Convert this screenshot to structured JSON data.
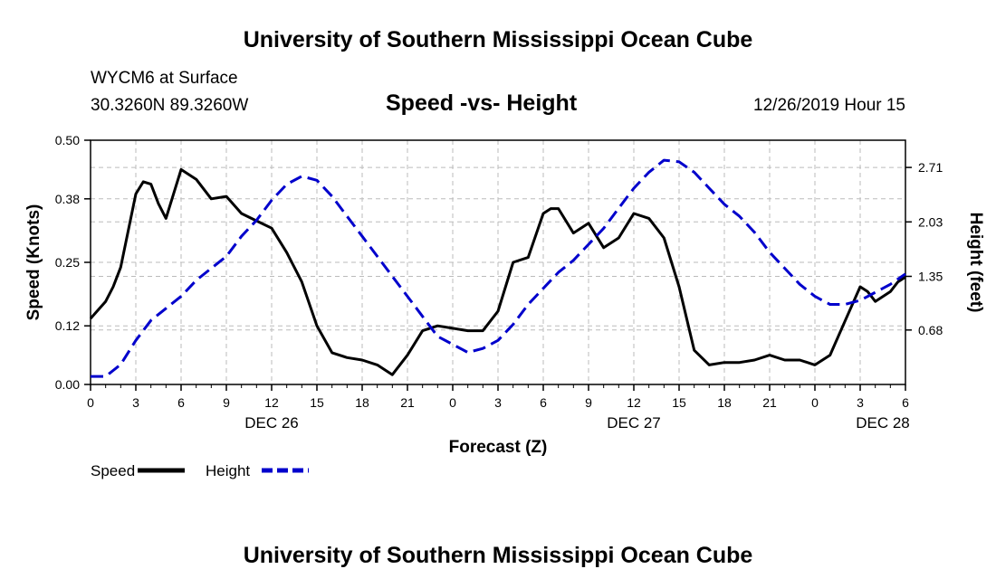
{
  "header": {
    "title": "University of Southern Mississippi Ocean Cube",
    "station_name": "WYCM6 at Surface",
    "station_coords": "30.3260N 89.3260W",
    "date_hour": "12/26/2019 Hour 15"
  },
  "footer": {
    "title": "University of Southern Mississippi Ocean Cube"
  },
  "chart_data": {
    "type": "line",
    "title": "Speed -vs- Height",
    "xlabel": "Forecast (Z)",
    "ylabel_left": "Speed (Knots)",
    "ylabel_right": "Height (feet)",
    "xlim": [
      0,
      54
    ],
    "x_ticks": [
      0,
      3,
      6,
      9,
      12,
      15,
      18,
      21,
      24,
      27,
      30,
      33,
      36,
      39,
      42,
      45,
      48,
      51,
      54
    ],
    "x_tick_labels": [
      "0",
      "3",
      "6",
      "9",
      "12",
      "15",
      "18",
      "21",
      "0",
      "3",
      "6",
      "9",
      "12",
      "15",
      "18",
      "21",
      "0",
      "3",
      "6"
    ],
    "day_labels": [
      {
        "x": 12,
        "label": "DEC 26"
      },
      {
        "x": 36,
        "label": "DEC 27"
      },
      {
        "x": 52.5,
        "label": "DEC 28"
      }
    ],
    "ylim_left": [
      0,
      0.5
    ],
    "y_ticks_left": [
      0.0,
      0.12,
      0.25,
      0.38,
      0.5
    ],
    "y_tick_labels_left": [
      "0.00",
      "0.12",
      "0.25",
      "0.38",
      "0.50"
    ],
    "ylim_right": [
      0,
      3.05
    ],
    "y_ticks_right": [
      0.68,
      1.35,
      2.03,
      2.71
    ],
    "y_tick_labels_right": [
      "0.68",
      "1.35",
      "2.03",
      "2.71"
    ],
    "grid": true,
    "series": [
      {
        "name": "Speed",
        "axis": "left",
        "color": "#000000",
        "style": "solid",
        "x": [
          0,
          1,
          1.5,
          2,
          3,
          3.5,
          4,
          4.5,
          5,
          6,
          7,
          8,
          9,
          10,
          11,
          12,
          13,
          14,
          15,
          16,
          17,
          18,
          19,
          20,
          21,
          22,
          23,
          24,
          25,
          26,
          27,
          28,
          29,
          30,
          30.5,
          31,
          32,
          33,
          34,
          35,
          36,
          37,
          38,
          39,
          40,
          41,
          42,
          43,
          44,
          45,
          46,
          47,
          48,
          49,
          50,
          51,
          51.5,
          52,
          53,
          53.5,
          54
        ],
        "y": [
          0.135,
          0.17,
          0.2,
          0.24,
          0.39,
          0.415,
          0.41,
          0.37,
          0.34,
          0.44,
          0.42,
          0.38,
          0.385,
          0.35,
          0.335,
          0.32,
          0.27,
          0.21,
          0.12,
          0.065,
          0.055,
          0.05,
          0.04,
          0.02,
          0.06,
          0.11,
          0.12,
          0.115,
          0.11,
          0.11,
          0.15,
          0.25,
          0.26,
          0.35,
          0.36,
          0.36,
          0.31,
          0.33,
          0.28,
          0.3,
          0.35,
          0.34,
          0.3,
          0.2,
          0.07,
          0.04,
          0.045,
          0.045,
          0.05,
          0.06,
          0.05,
          0.05,
          0.04,
          0.06,
          0.13,
          0.2,
          0.19,
          0.17,
          0.19,
          0.21,
          0.22
        ]
      },
      {
        "name": "Height",
        "axis": "right",
        "color": "#0000cc",
        "style": "dashed",
        "x": [
          0,
          1,
          2,
          3,
          4,
          5,
          6,
          7,
          8,
          9,
          10,
          11,
          12,
          13,
          14,
          15,
          16,
          17,
          18,
          19,
          20,
          21,
          22,
          23,
          24,
          25,
          26,
          27,
          28,
          29,
          30,
          31,
          32,
          33,
          34,
          35,
          36,
          37,
          38,
          39,
          40,
          41,
          42,
          43,
          44,
          45,
          46,
          47,
          48,
          49,
          50,
          51,
          52,
          53,
          54
        ],
        "y": [
          0.1,
          0.1,
          0.25,
          0.55,
          0.8,
          0.95,
          1.1,
          1.3,
          1.45,
          1.6,
          1.85,
          2.05,
          2.3,
          2.5,
          2.6,
          2.55,
          2.35,
          2.1,
          1.85,
          1.6,
          1.35,
          1.1,
          0.85,
          0.6,
          0.5,
          0.4,
          0.45,
          0.55,
          0.75,
          1.0,
          1.2,
          1.4,
          1.55,
          1.75,
          1.95,
          2.2,
          2.45,
          2.65,
          2.8,
          2.78,
          2.65,
          2.45,
          2.25,
          2.1,
          1.9,
          1.65,
          1.45,
          1.25,
          1.1,
          1.0,
          1.0,
          1.05,
          1.15,
          1.25,
          1.38
        ]
      }
    ],
    "legend": [
      {
        "label": "Speed",
        "color": "#000000",
        "style": "solid"
      },
      {
        "label": "Height",
        "color": "#0000cc",
        "style": "dashed"
      }
    ]
  }
}
